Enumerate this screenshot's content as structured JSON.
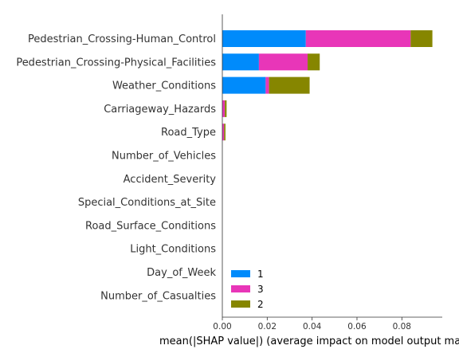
{
  "chart_data": {
    "type": "bar",
    "orientation": "horizontal",
    "stacked": true,
    "title": "",
    "xlabel": "mean(|SHAP value|) (average impact on model output ma",
    "ylabel": "",
    "xlim": [
      0,
      0.098
    ],
    "x_ticks": [
      0.0,
      0.02,
      0.04,
      0.06,
      0.08
    ],
    "x_tick_labels": [
      "0.00",
      "0.02",
      "0.04",
      "0.06",
      "0.08"
    ],
    "grid": false,
    "legend_position": "lower-left",
    "categories": [
      "Pedestrian_Crossing-Human_Control",
      "Pedestrian_Crossing-Physical_Facilities",
      "Weather_Conditions",
      "Carriageway_Hazards",
      "Road_Type",
      "Number_of_Vehicles",
      "Accident_Severity",
      "Special_Conditions_at_Site",
      "Road_Surface_Conditions",
      "Light_Conditions",
      "Day_of_Week",
      "Number_of_Casualties"
    ],
    "series": [
      {
        "name": "1",
        "color": "#008bfb",
        "values": [
          0.0372,
          0.0163,
          0.0193,
          0.0,
          0.0,
          0.0,
          0.0,
          0.0,
          0.0,
          0.0,
          0.0,
          0.0
        ]
      },
      {
        "name": "3",
        "color": "#e836b8",
        "values": [
          0.0467,
          0.0217,
          0.0015,
          0.0011,
          0.0008,
          0.0,
          0.0,
          0.0,
          0.0,
          0.0,
          0.0,
          0.0
        ]
      },
      {
        "name": "2",
        "color": "#868600",
        "values": [
          0.0097,
          0.0054,
          0.0181,
          0.0008,
          0.0006,
          0.0,
          0.0,
          0.0,
          0.0,
          0.0,
          0.0,
          0.0
        ]
      }
    ],
    "legend_order": [
      "1",
      "3",
      "2"
    ]
  }
}
